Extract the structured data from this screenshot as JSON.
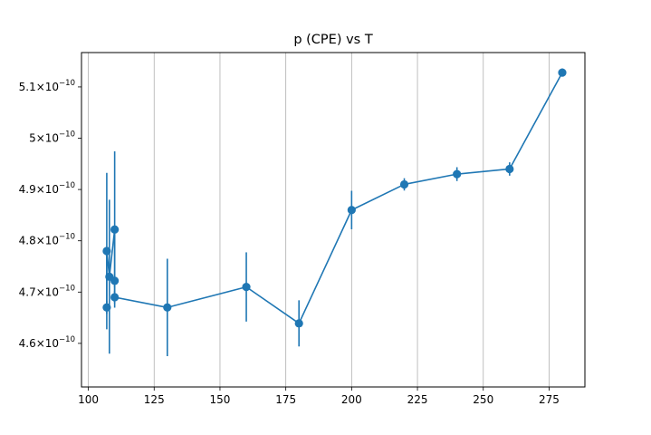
{
  "chart_data": {
    "type": "line",
    "title": "p (CPE) vs T",
    "xlabel": "",
    "ylabel": "",
    "xlim": [
      97.4,
      288.6
    ],
    "ylim": [
      4.515e-10,
      5.167e-10
    ],
    "grid": {
      "x": true,
      "y": false
    },
    "color": "#1f77b4",
    "x_ticks": [
      100,
      125,
      150,
      175,
      200,
      225,
      250,
      275
    ],
    "x_tick_labels": [
      "100",
      "125",
      "150",
      "175",
      "200",
      "225",
      "250",
      "275"
    ],
    "y_ticks": [
      4.6e-10,
      4.7e-10,
      4.8e-10,
      4.9e-10,
      5e-10,
      5.1e-10
    ],
    "y_tick_labels": [
      {
        "mantissa": "4.6",
        "base": "10",
        "exp": "−10"
      },
      {
        "mantissa": "4.7",
        "base": "10",
        "exp": "−10"
      },
      {
        "mantissa": "4.8",
        "base": "10",
        "exp": "−10"
      },
      {
        "mantissa": "4.9",
        "base": "10",
        "exp": "−10"
      },
      {
        "mantissa": "5",
        "base": "10",
        "exp": "−10"
      },
      {
        "mantissa": "5.1",
        "base": "10",
        "exp": "−10"
      }
    ],
    "series": [
      {
        "x": [
          107,
          107,
          108,
          110,
          110,
          110,
          130,
          160,
          180,
          200,
          220,
          240,
          260,
          280
        ],
        "y": [
          4.67e-10,
          4.78e-10,
          4.73e-10,
          4.822e-10,
          4.722e-10,
          4.69e-10,
          4.67e-10,
          4.71e-10,
          4.639e-10,
          4.86e-10,
          4.91e-10,
          4.93e-10,
          4.94e-10,
          5.128e-10
        ],
        "yerr": [
          1.25e-12,
          1.525e-11,
          1.5e-11,
          1.525e-11,
          1.25e-12,
          1.25e-12,
          9.5e-12,
          6.75e-12,
          4.5e-12,
          3.75e-12,
          1.2e-12,
          1.35e-12,
          1.3e-12,
          8e-13
        ]
      }
    ]
  }
}
